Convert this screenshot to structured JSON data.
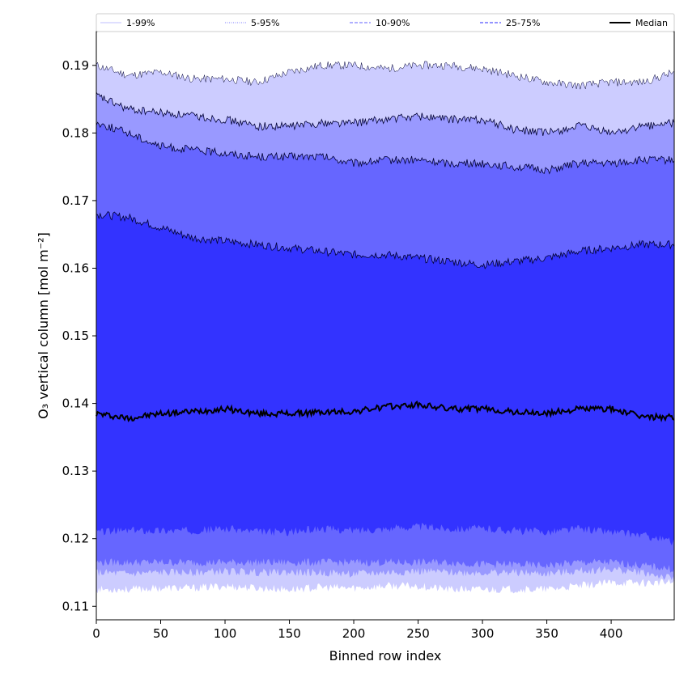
{
  "chart_data": {
    "type": "area",
    "title": "",
    "xlabel": "Binned row index",
    "ylabel": "O₃ vertical column [mol m⁻²]",
    "xlim": [
      0,
      449
    ],
    "ylim": [
      0.108,
      0.195
    ],
    "xticks": [
      0,
      50,
      100,
      150,
      200,
      250,
      300,
      350,
      400
    ],
    "yticks": [
      0.11,
      0.12,
      0.13,
      0.14,
      0.15,
      0.16,
      0.17,
      0.18,
      0.19
    ],
    "ytick_labels": [
      "0.11",
      "0.12",
      "0.13",
      "0.14",
      "0.15",
      "0.16",
      "0.17",
      "0.18",
      "0.19"
    ],
    "legend_position": "top, above plot, single row",
    "x": [
      0,
      25,
      50,
      75,
      100,
      125,
      150,
      175,
      200,
      225,
      250,
      275,
      300,
      325,
      350,
      375,
      400,
      425,
      449
    ],
    "bands": [
      {
        "name": "1-99%",
        "color": "#ccccff",
        "upper": [
          0.19,
          0.1885,
          0.189,
          0.188,
          0.188,
          0.1875,
          0.189,
          0.19,
          0.19,
          0.1895,
          0.19,
          0.19,
          0.1895,
          0.1885,
          0.1875,
          0.187,
          0.1875,
          0.1875,
          0.189
        ],
        "lower": [
          0.1125,
          0.1125,
          0.1127,
          0.1127,
          0.113,
          0.1127,
          0.1125,
          0.1128,
          0.1127,
          0.113,
          0.113,
          0.1125,
          0.1125,
          0.1125,
          0.1125,
          0.113,
          0.1135,
          0.1135,
          0.1135
        ]
      },
      {
        "name": "5-95%",
        "color": "#9999ff",
        "upper": [
          0.1855,
          0.1835,
          0.183,
          0.1825,
          0.182,
          0.181,
          0.181,
          0.1815,
          0.1815,
          0.182,
          0.1825,
          0.182,
          0.182,
          0.1805,
          0.18,
          0.181,
          0.18,
          0.181,
          0.1815
        ],
        "lower": [
          0.115,
          0.1148,
          0.115,
          0.115,
          0.1152,
          0.115,
          0.115,
          0.115,
          0.1148,
          0.115,
          0.1152,
          0.115,
          0.115,
          0.115,
          0.1148,
          0.1152,
          0.1155,
          0.115,
          0.114
        ]
      },
      {
        "name": "10-90%",
        "color": "#6666ff",
        "upper": [
          0.1815,
          0.18,
          0.178,
          0.1775,
          0.177,
          0.1765,
          0.1765,
          0.1765,
          0.1755,
          0.176,
          0.176,
          0.1755,
          0.1755,
          0.175,
          0.1745,
          0.1755,
          0.1755,
          0.176,
          0.176
        ],
        "lower": [
          0.1165,
          0.1165,
          0.1165,
          0.1165,
          0.1165,
          0.1165,
          0.1165,
          0.1165,
          0.1165,
          0.1165,
          0.1165,
          0.1165,
          0.1162,
          0.1162,
          0.116,
          0.1165,
          0.1165,
          0.116,
          0.1155
        ]
      },
      {
        "name": "25-75%",
        "color": "#3333ff",
        "upper": [
          0.168,
          0.1675,
          0.166,
          0.1645,
          0.164,
          0.1635,
          0.163,
          0.1625,
          0.162,
          0.162,
          0.1615,
          0.161,
          0.1605,
          0.161,
          0.1615,
          0.1625,
          0.163,
          0.1635,
          0.1635
        ],
        "lower": [
          0.121,
          0.1212,
          0.1212,
          0.1212,
          0.1215,
          0.121,
          0.121,
          0.1215,
          0.1212,
          0.1215,
          0.1218,
          0.1215,
          0.1215,
          0.1212,
          0.121,
          0.1215,
          0.121,
          0.1205,
          0.1195
        ]
      }
    ],
    "series": [
      {
        "name": "Median",
        "color": "#000000",
        "values": [
          0.1385,
          0.1378,
          0.1385,
          0.1388,
          0.1392,
          0.1385,
          0.1385,
          0.1387,
          0.1388,
          0.1395,
          0.1398,
          0.1392,
          0.1392,
          0.1387,
          0.1385,
          0.1392,
          0.1392,
          0.138,
          0.138
        ]
      }
    ],
    "legend": [
      {
        "label": "1-99%",
        "style": "solid",
        "color": "#ccccff"
      },
      {
        "label": "5-95%",
        "style": "dotted",
        "color": "#9999ff"
      },
      {
        "label": "10-90%",
        "style": "dashed",
        "color": "#8080ff"
      },
      {
        "label": "25-75%",
        "style": "dashed",
        "color": "#5555ff"
      },
      {
        "label": "Median",
        "style": "solid",
        "color": "#000000"
      }
    ]
  }
}
